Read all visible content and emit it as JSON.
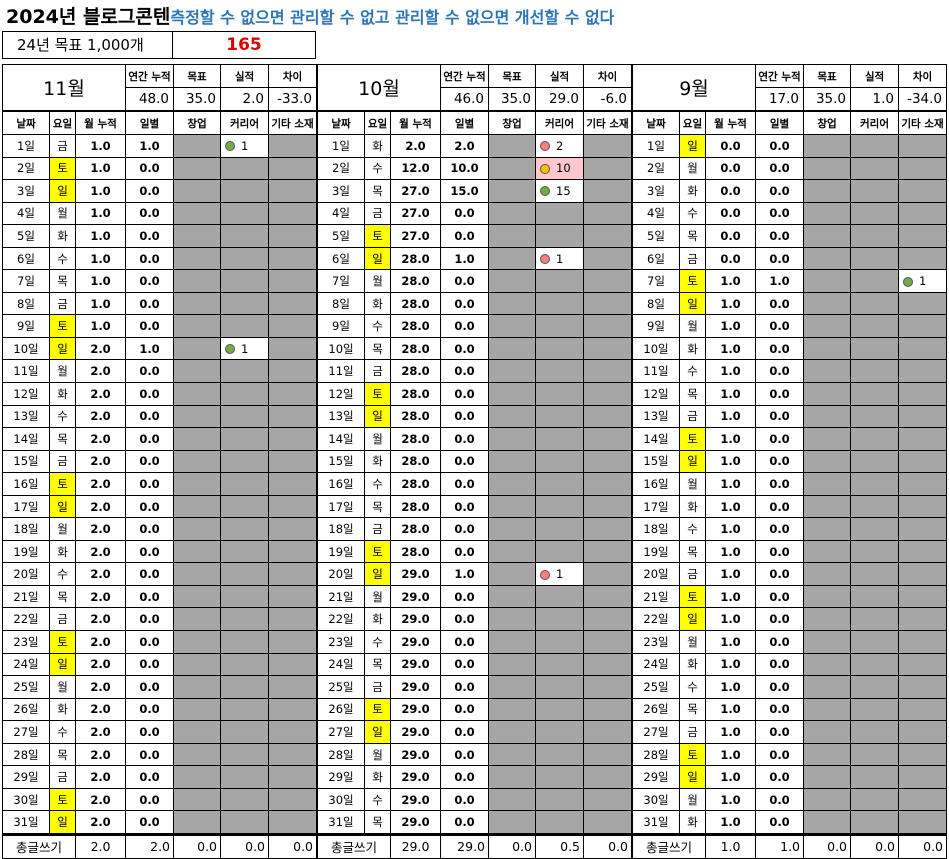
{
  "title": {
    "main": "2024년 블로그콘텐",
    "sub": "측정할 수 없으면 관리할 수 없고 관리할 수 없으면 개선할 수 없다"
  },
  "goal": {
    "label": "24년 목표 1,000개",
    "value": "165"
  },
  "headers": {
    "annual": "연간 누적",
    "target": "목표",
    "actual": "실적",
    "diff": "차이",
    "date": "날짜",
    "dow": "요일",
    "month_cum": "월 누적",
    "daily": "일별",
    "startup": "창업",
    "career": "커리어",
    "etc": "기타 소재",
    "total": "총글쓰기"
  },
  "colors": {
    "weekend": "#FFFF00",
    "gray_cell": "#A6A6A6",
    "dot_green": "#70AD47",
    "dot_red": "#FF7C80",
    "dot_yellow": "#FFC000",
    "pink": "#FFC7CE",
    "accent_red": "#E00000",
    "accent_blue": "#2E75B6"
  },
  "months": [
    {
      "name": "11월",
      "annual": "48.0",
      "target": "35.0",
      "actual": "2.0",
      "diff": "-33.0",
      "days": [
        {
          "d": "1일",
          "w": "금",
          "c": "1.0",
          "x": "1.0",
          "note": {
            "dot": "green",
            "v": "1"
          }
        },
        {
          "d": "2일",
          "w": "토",
          "c": "1.0",
          "x": "0.0"
        },
        {
          "d": "3일",
          "w": "일",
          "c": "1.0",
          "x": "0.0"
        },
        {
          "d": "4일",
          "w": "월",
          "c": "1.0",
          "x": "0.0"
        },
        {
          "d": "5일",
          "w": "화",
          "c": "1.0",
          "x": "0.0"
        },
        {
          "d": "6일",
          "w": "수",
          "c": "1.0",
          "x": "0.0"
        },
        {
          "d": "7일",
          "w": "목",
          "c": "1.0",
          "x": "0.0"
        },
        {
          "d": "8일",
          "w": "금",
          "c": "1.0",
          "x": "0.0"
        },
        {
          "d": "9일",
          "w": "토",
          "c": "1.0",
          "x": "0.0"
        },
        {
          "d": "10일",
          "w": "일",
          "c": "2.0",
          "x": "1.0",
          "note": {
            "dot": "green",
            "v": "1"
          }
        },
        {
          "d": "11일",
          "w": "월",
          "c": "2.0",
          "x": "0.0"
        },
        {
          "d": "12일",
          "w": "화",
          "c": "2.0",
          "x": "0.0"
        },
        {
          "d": "13일",
          "w": "수",
          "c": "2.0",
          "x": "0.0"
        },
        {
          "d": "14일",
          "w": "목",
          "c": "2.0",
          "x": "0.0"
        },
        {
          "d": "15일",
          "w": "금",
          "c": "2.0",
          "x": "0.0"
        },
        {
          "d": "16일",
          "w": "토",
          "c": "2.0",
          "x": "0.0"
        },
        {
          "d": "17일",
          "w": "일",
          "c": "2.0",
          "x": "0.0"
        },
        {
          "d": "18일",
          "w": "월",
          "c": "2.0",
          "x": "0.0"
        },
        {
          "d": "19일",
          "w": "화",
          "c": "2.0",
          "x": "0.0"
        },
        {
          "d": "20일",
          "w": "수",
          "c": "2.0",
          "x": "0.0"
        },
        {
          "d": "21일",
          "w": "목",
          "c": "2.0",
          "x": "0.0"
        },
        {
          "d": "22일",
          "w": "금",
          "c": "2.0",
          "x": "0.0"
        },
        {
          "d": "23일",
          "w": "토",
          "c": "2.0",
          "x": "0.0"
        },
        {
          "d": "24일",
          "w": "일",
          "c": "2.0",
          "x": "0.0"
        },
        {
          "d": "25일",
          "w": "월",
          "c": "2.0",
          "x": "0.0"
        },
        {
          "d": "26일",
          "w": "화",
          "c": "2.0",
          "x": "0.0"
        },
        {
          "d": "27일",
          "w": "수",
          "c": "2.0",
          "x": "0.0"
        },
        {
          "d": "28일",
          "w": "목",
          "c": "2.0",
          "x": "0.0"
        },
        {
          "d": "29일",
          "w": "금",
          "c": "2.0",
          "x": "0.0"
        },
        {
          "d": "30일",
          "w": "토",
          "c": "2.0",
          "x": "0.0"
        },
        {
          "d": "31일",
          "w": "일",
          "c": "2.0",
          "x": "0.0"
        }
      ],
      "totals": [
        "2.0",
        "2.0",
        "0.0",
        "0.0",
        "0.0"
      ]
    },
    {
      "name": "10월",
      "annual": "46.0",
      "target": "35.0",
      "actual": "29.0",
      "diff": "-6.0",
      "days": [
        {
          "d": "1일",
          "w": "화",
          "c": "2.0",
          "x": "2.0",
          "note": {
            "dot": "red",
            "v": "2"
          }
        },
        {
          "d": "2일",
          "w": "수",
          "c": "12.0",
          "x": "10.0",
          "note": {
            "dot": "yellow",
            "v": "10",
            "pink": true
          }
        },
        {
          "d": "3일",
          "w": "목",
          "c": "27.0",
          "x": "15.0",
          "note": {
            "dot": "green",
            "v": "15"
          }
        },
        {
          "d": "4일",
          "w": "금",
          "c": "27.0",
          "x": "0.0"
        },
        {
          "d": "5일",
          "w": "토",
          "c": "27.0",
          "x": "0.0"
        },
        {
          "d": "6일",
          "w": "일",
          "c": "28.0",
          "x": "1.0",
          "note": {
            "dot": "red",
            "v": "1"
          }
        },
        {
          "d": "7일",
          "w": "월",
          "c": "28.0",
          "x": "0.0"
        },
        {
          "d": "8일",
          "w": "화",
          "c": "28.0",
          "x": "0.0"
        },
        {
          "d": "9일",
          "w": "수",
          "c": "28.0",
          "x": "0.0"
        },
        {
          "d": "10일",
          "w": "목",
          "c": "28.0",
          "x": "0.0"
        },
        {
          "d": "11일",
          "w": "금",
          "c": "28.0",
          "x": "0.0"
        },
        {
          "d": "12일",
          "w": "토",
          "c": "28.0",
          "x": "0.0"
        },
        {
          "d": "13일",
          "w": "일",
          "c": "28.0",
          "x": "0.0"
        },
        {
          "d": "14일",
          "w": "월",
          "c": "28.0",
          "x": "0.0"
        },
        {
          "d": "15일",
          "w": "화",
          "c": "28.0",
          "x": "0.0"
        },
        {
          "d": "16일",
          "w": "수",
          "c": "28.0",
          "x": "0.0"
        },
        {
          "d": "17일",
          "w": "목",
          "c": "28.0",
          "x": "0.0"
        },
        {
          "d": "18일",
          "w": "금",
          "c": "28.0",
          "x": "0.0"
        },
        {
          "d": "19일",
          "w": "토",
          "c": "28.0",
          "x": "0.0"
        },
        {
          "d": "20일",
          "w": "일",
          "c": "29.0",
          "x": "1.0",
          "note": {
            "dot": "red",
            "v": "1"
          }
        },
        {
          "d": "21일",
          "w": "월",
          "c": "29.0",
          "x": "0.0"
        },
        {
          "d": "22일",
          "w": "화",
          "c": "29.0",
          "x": "0.0"
        },
        {
          "d": "23일",
          "w": "수",
          "c": "29.0",
          "x": "0.0"
        },
        {
          "d": "24일",
          "w": "목",
          "c": "29.0",
          "x": "0.0"
        },
        {
          "d": "25일",
          "w": "금",
          "c": "29.0",
          "x": "0.0"
        },
        {
          "d": "26일",
          "w": "토",
          "c": "29.0",
          "x": "0.0"
        },
        {
          "d": "27일",
          "w": "일",
          "c": "29.0",
          "x": "0.0"
        },
        {
          "d": "28일",
          "w": "월",
          "c": "29.0",
          "x": "0.0"
        },
        {
          "d": "29일",
          "w": "화",
          "c": "29.0",
          "x": "0.0"
        },
        {
          "d": "30일",
          "w": "수",
          "c": "29.0",
          "x": "0.0"
        },
        {
          "d": "31일",
          "w": "목",
          "c": "29.0",
          "x": "0.0"
        }
      ],
      "totals": [
        "29.0",
        "29.0",
        "0.0",
        "0.5",
        "0.0"
      ]
    },
    {
      "name": "9월",
      "annual": "17.0",
      "target": "35.0",
      "actual": "1.0",
      "diff": "-34.0",
      "days": [
        {
          "d": "1일",
          "w": "일",
          "c": "0.0",
          "x": "0.0"
        },
        {
          "d": "2일",
          "w": "월",
          "c": "0.0",
          "x": "0.0"
        },
        {
          "d": "3일",
          "w": "화",
          "c": "0.0",
          "x": "0.0"
        },
        {
          "d": "4일",
          "w": "수",
          "c": "0.0",
          "x": "0.0"
        },
        {
          "d": "5일",
          "w": "목",
          "c": "0.0",
          "x": "0.0"
        },
        {
          "d": "6일",
          "w": "금",
          "c": "0.0",
          "x": "0.0"
        },
        {
          "d": "7일",
          "w": "토",
          "c": "1.0",
          "x": "1.0",
          "etc": {
            "dot": "green",
            "v": "1"
          }
        },
        {
          "d": "8일",
          "w": "일",
          "c": "1.0",
          "x": "0.0"
        },
        {
          "d": "9일",
          "w": "월",
          "c": "1.0",
          "x": "0.0"
        },
        {
          "d": "10일",
          "w": "화",
          "c": "1.0",
          "x": "0.0"
        },
        {
          "d": "11일",
          "w": "수",
          "c": "1.0",
          "x": "0.0"
        },
        {
          "d": "12일",
          "w": "목",
          "c": "1.0",
          "x": "0.0"
        },
        {
          "d": "13일",
          "w": "금",
          "c": "1.0",
          "x": "0.0"
        },
        {
          "d": "14일",
          "w": "토",
          "c": "1.0",
          "x": "0.0"
        },
        {
          "d": "15일",
          "w": "일",
          "c": "1.0",
          "x": "0.0"
        },
        {
          "d": "16일",
          "w": "월",
          "c": "1.0",
          "x": "0.0"
        },
        {
          "d": "17일",
          "w": "화",
          "c": "1.0",
          "x": "0.0"
        },
        {
          "d": "18일",
          "w": "수",
          "c": "1.0",
          "x": "0.0"
        },
        {
          "d": "19일",
          "w": "목",
          "c": "1.0",
          "x": "0.0"
        },
        {
          "d": "20일",
          "w": "금",
          "c": "1.0",
          "x": "0.0"
        },
        {
          "d": "21일",
          "w": "토",
          "c": "1.0",
          "x": "0.0"
        },
        {
          "d": "22일",
          "w": "일",
          "c": "1.0",
          "x": "0.0"
        },
        {
          "d": "23일",
          "w": "월",
          "c": "1.0",
          "x": "0.0"
        },
        {
          "d": "24일",
          "w": "화",
          "c": "1.0",
          "x": "0.0"
        },
        {
          "d": "25일",
          "w": "수",
          "c": "1.0",
          "x": "0.0"
        },
        {
          "d": "26일",
          "w": "목",
          "c": "1.0",
          "x": "0.0"
        },
        {
          "d": "27일",
          "w": "금",
          "c": "1.0",
          "x": "0.0"
        },
        {
          "d": "28일",
          "w": "토",
          "c": "1.0",
          "x": "0.0"
        },
        {
          "d": "29일",
          "w": "일",
          "c": "1.0",
          "x": "0.0"
        },
        {
          "d": "30일",
          "w": "월",
          "c": "1.0",
          "x": "0.0"
        },
        {
          "d": "31일",
          "w": "화",
          "c": "1.0",
          "x": "0.0"
        }
      ],
      "totals": [
        "1.0",
        "1.0",
        "0.0",
        "0.0",
        "0.0"
      ]
    }
  ]
}
